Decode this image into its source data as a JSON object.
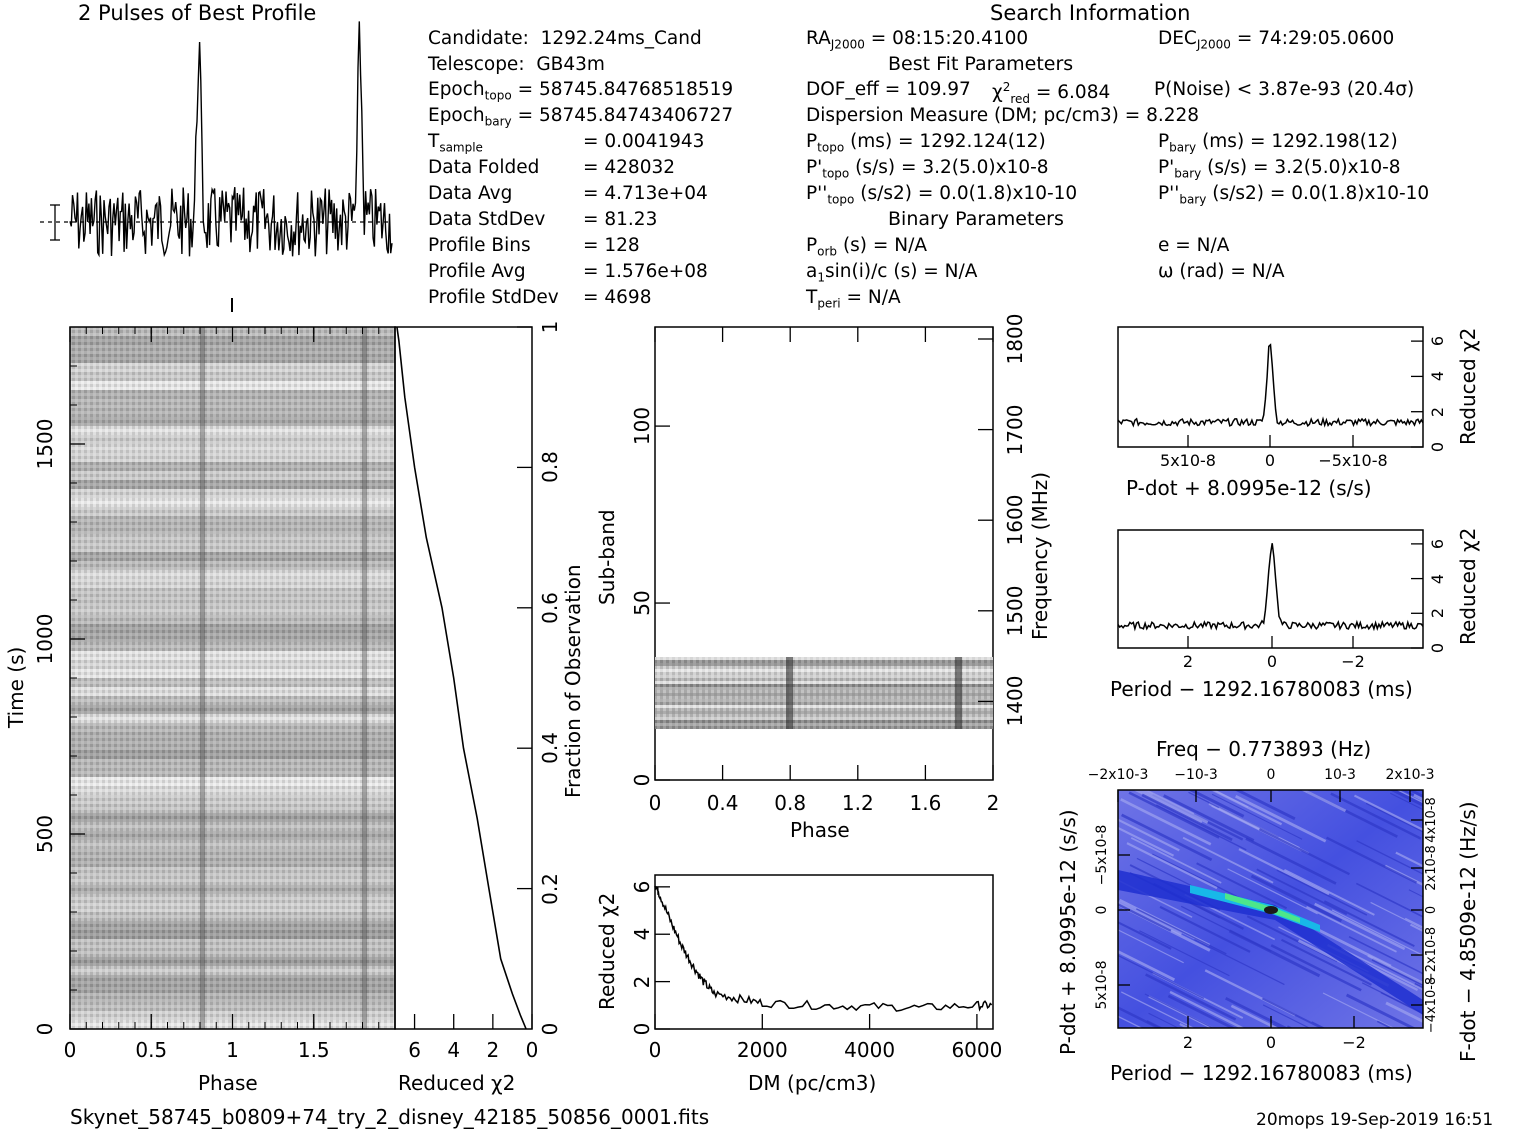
{
  "header": {
    "profile_title": "2 Pulses of Best Profile",
    "search_title": "Search Information",
    "best_fit_title": "Best Fit Parameters",
    "binary_title": "Binary Parameters"
  },
  "info_col1": [
    {
      "label": "Candidate:",
      "value": "1292.24ms_Cand"
    },
    {
      "label": "Telescope:",
      "value": "GB43m"
    },
    {
      "label": "Epoch_topo",
      "value": "= 58745.84768518519"
    },
    {
      "label": "Epoch_bary",
      "value": "= 58745.84743406727"
    },
    {
      "label": "T_sample",
      "value": "=  0.0041943"
    },
    {
      "label": "Data Folded",
      "value": "=  428032"
    },
    {
      "label": "Data Avg",
      "value": "=  4.713e+04"
    },
    {
      "label": "Data StdDev",
      "value": "=  81.23"
    },
    {
      "label": "Profile Bins",
      "value": "=  128"
    },
    {
      "label": "Profile Avg",
      "value": "=  1.576e+08"
    },
    {
      "label": "Profile StdDev",
      "value": "=  4698"
    }
  ],
  "info_col2": {
    "ra": "= 08:15:20.4100",
    "dec": "= 74:29:05.0600",
    "dof": "DOF_eff = 109.97",
    "chi": "= 6.084",
    "pnoise": "P(Noise) < 3.87e-93  (20.4σ)",
    "dm": "Dispersion Measure (DM; pc/cm3) = 8.228",
    "ptopo": "(ms) =  1292.124(12)",
    "pbary": "(ms) =  1292.198(12)",
    "pdtopo": "(s/s) =  3.2(5.0)x10-8",
    "pdbary": "(s/s) =  3.2(5.0)x10-8",
    "pddtopo": "(s/s2) = 0.0(1.8)x10-10",
    "pddbary": "(s/s2) = 0.0(1.8)x10-10",
    "porb": "(s) = N/A",
    "e": "e = N/A",
    "a1": "sin(i)/c (s) = N/A",
    "omega": "ω (rad) = N/A",
    "tperi": "= N/A"
  },
  "footer": {
    "filename": "Skynet_58745_b0809+74_try_2_disney_42185_50856_0001.fits",
    "stamp": "20mops 19-Sep-2019 16:51"
  },
  "axes": {
    "time_label": "Time (s)",
    "phase_label": "Phase",
    "redchi_label": "Reduced χ2",
    "fraction_label": "Fraction of Observation",
    "subband_label": "Sub-band",
    "frequency_label": "Frequency (MHz)",
    "dm_label": "DM (pc/cm3)",
    "pdot_label": "P-dot + 8.0995e-12 (s/s)",
    "period_label": "Period − 1292.16780083 (ms)",
    "freq_top_label": "Freq − 0.773893 (Hz)",
    "fdot_label": "F-dot − 4.8509e-12 (Hz/s)"
  },
  "chart_data": [
    {
      "type": "line",
      "name": "profile",
      "xlim": [
        0,
        2
      ],
      "peaks_at_phase": [
        0.8,
        1.8
      ],
      "note_values": "normalised profile, two rotations"
    },
    {
      "type": "heatmap",
      "name": "time-phase",
      "xlim": [
        0,
        2
      ],
      "ylim": [
        0,
        1800
      ],
      "xticks": [
        "0",
        "0.5",
        "1",
        "1.5"
      ],
      "yticks": [
        "0",
        "500",
        "1000",
        "1500"
      ]
    },
    {
      "type": "line",
      "name": "reduced-chi2-vs-fraction",
      "x": [
        0.3,
        0.6,
        1.0,
        1.6,
        2.2,
        2.8,
        3.5,
        4.0,
        4.6,
        5.4,
        6.0,
        6.5,
        6.8
      ],
      "y": [
        0.0,
        0.02,
        0.05,
        0.1,
        0.2,
        0.3,
        0.4,
        0.5,
        0.6,
        0.7,
        0.8,
        0.9,
        0.98
      ],
      "xlim": [
        7,
        0
      ],
      "ylim": [
        0,
        1
      ],
      "xticks": [
        "6",
        "4",
        "2",
        "0"
      ],
      "yticks": [
        "0.2",
        "0.4",
        "0.6",
        "0.8",
        "1"
      ]
    },
    {
      "type": "heatmap",
      "name": "subband-phase",
      "xlim": [
        0,
        2
      ],
      "ylim": [
        0,
        128
      ],
      "xticks": [
        "0",
        "0.4",
        "0.8",
        "1.2",
        "1.6",
        "2"
      ],
      "yticks": [
        "0",
        "50",
        "100"
      ],
      "freq_ticks": [
        "1400",
        "1500",
        "1600",
        "1700",
        "1800"
      ],
      "data_rows": [
        15,
        35
      ]
    },
    {
      "type": "line",
      "name": "reduced-chi2-vs-dm",
      "x": [
        0,
        100,
        300,
        500,
        700,
        900,
        1100,
        1500,
        2000,
        3000,
        4000,
        5000,
        6000,
        6300
      ],
      "y": [
        6.1,
        5.6,
        4.5,
        3.5,
        2.7,
        2.0,
        1.5,
        1.3,
        1.1,
        1.0,
        0.95,
        0.9,
        1.0,
        1.0
      ],
      "xlim": [
        0,
        6300
      ],
      "ylim": [
        0,
        6.5
      ],
      "xticks": [
        "0",
        "2000",
        "4000",
        "6000"
      ],
      "yticks": [
        "0",
        "2",
        "4",
        "6"
      ]
    },
    {
      "type": "line",
      "name": "reduced-chi2-vs-pdot",
      "xticks": [
        "5x10-8",
        "0",
        "−5x10-8"
      ],
      "yticks": [
        "0",
        "2",
        "4",
        "6"
      ],
      "peak": 6.0,
      "baseline": 1.4
    },
    {
      "type": "line",
      "name": "reduced-chi2-vs-period",
      "xticks": [
        "2",
        "0",
        "−2"
      ],
      "yticks": [
        "0",
        "2",
        "4",
        "6"
      ],
      "peak": 6.0,
      "baseline": 1.3
    },
    {
      "type": "heatmap",
      "name": "pdot-period",
      "xticks": [
        "2",
        "0",
        "−2"
      ],
      "top_ticks": [
        "−2x10-3",
        "−10-3",
        "0",
        "10-3",
        "2x10-3"
      ],
      "yticks_left": [
        "−5x10-8",
        "0",
        "5x10-8"
      ],
      "yticks_right": [
        "4x10-8",
        "2x10-8",
        "0",
        "−2x10-8",
        "−4x10-8"
      ]
    }
  ]
}
